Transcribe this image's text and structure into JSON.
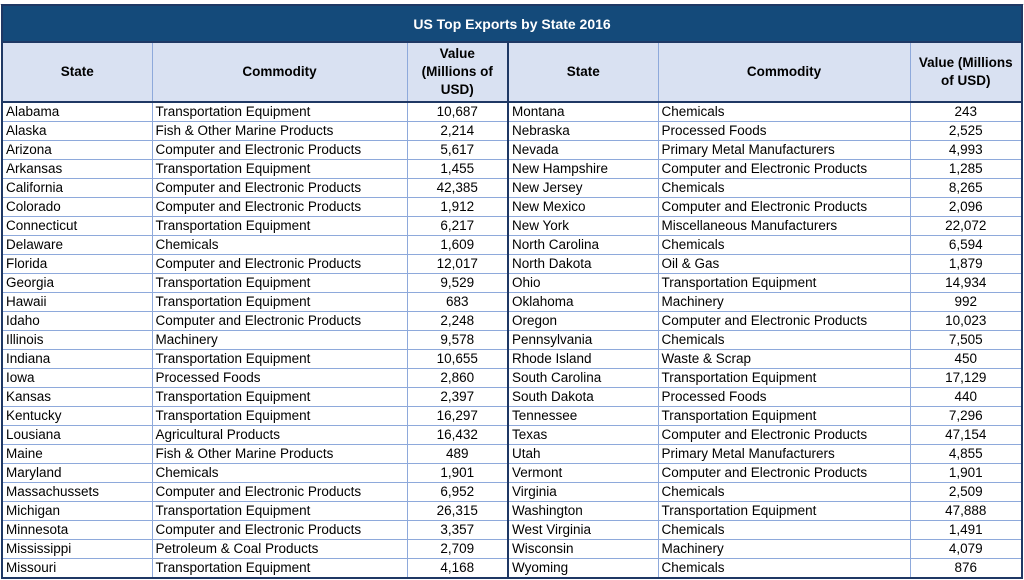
{
  "title": "US Top Exports by State 2016",
  "colors": {
    "title_bg": "#144a7a",
    "header_bg": "#d9e1f2",
    "border": "#1f3864",
    "grid": "#8ea9db"
  },
  "headers": {
    "left": {
      "state": "State",
      "commodity": "Commodity",
      "value": "Value (Millions of USD)"
    },
    "right": {
      "state": "State",
      "commodity": "Commodity",
      "value": "Value (Millions of USD)"
    }
  },
  "rows": [
    {
      "l": [
        "Alabama",
        "Transportation Equipment",
        "10,687"
      ],
      "r": [
        "Montana",
        "Chemicals",
        "243"
      ]
    },
    {
      "l": [
        "Alaska",
        "Fish & Other Marine Products",
        "2,214"
      ],
      "r": [
        "Nebraska",
        "Processed Foods",
        "2,525"
      ]
    },
    {
      "l": [
        "Arizona",
        "Computer and Electronic Products",
        "5,617"
      ],
      "r": [
        "Nevada",
        "Primary Metal Manufacturers",
        "4,993"
      ]
    },
    {
      "l": [
        "Arkansas",
        "Transportation Equipment",
        "1,455"
      ],
      "r": [
        "New Hampshire",
        "Computer and Electronic Products",
        "1,285"
      ]
    },
    {
      "l": [
        "California",
        "Computer and Electronic Products",
        "42,385"
      ],
      "r": [
        "New Jersey",
        "Chemicals",
        "8,265"
      ]
    },
    {
      "l": [
        "Colorado",
        "Computer and Electronic Products",
        "1,912"
      ],
      "r": [
        "New Mexico",
        "Computer and Electronic Products",
        "2,096"
      ]
    },
    {
      "l": [
        "Connecticut",
        "Transportation Equipment",
        "6,217"
      ],
      "r": [
        "New York",
        "Miscellaneous Manufacturers",
        "22,072"
      ]
    },
    {
      "l": [
        "Delaware",
        "Chemicals",
        "1,609"
      ],
      "r": [
        "North Carolina",
        "Chemicals",
        "6,594"
      ]
    },
    {
      "l": [
        "Florida",
        "Computer and Electronic Products",
        "12,017"
      ],
      "r": [
        "North Dakota",
        "Oil & Gas",
        "1,879"
      ]
    },
    {
      "l": [
        "Georgia",
        "Transportation Equipment",
        "9,529"
      ],
      "r": [
        "Ohio",
        "Transportation Equipment",
        "14,934"
      ]
    },
    {
      "l": [
        "Hawaii",
        "Transportation Equipment",
        "683"
      ],
      "r": [
        "Oklahoma",
        "Machinery",
        "992"
      ]
    },
    {
      "l": [
        "Idaho",
        "Computer and Electronic Products",
        "2,248"
      ],
      "r": [
        "Oregon",
        "Computer and Electronic Products",
        "10,023"
      ]
    },
    {
      "l": [
        "Illinois",
        "Machinery",
        "9,578"
      ],
      "r": [
        "Pennsylvania",
        "Chemicals",
        "7,505"
      ]
    },
    {
      "l": [
        "Indiana",
        "Transportation Equipment",
        "10,655"
      ],
      "r": [
        "Rhode Island",
        "Waste & Scrap",
        "450"
      ]
    },
    {
      "l": [
        "Iowa",
        "Processed Foods",
        "2,860"
      ],
      "r": [
        "South Carolina",
        "Transportation Equipment",
        "17,129"
      ]
    },
    {
      "l": [
        "Kansas",
        "Transportation Equipment",
        "2,397"
      ],
      "r": [
        "South Dakota",
        "Processed Foods",
        "440"
      ]
    },
    {
      "l": [
        "Kentucky",
        "Transportation Equipment",
        "16,297"
      ],
      "r": [
        "Tennessee",
        "Transportation Equipment",
        "7,296"
      ]
    },
    {
      "l": [
        "Lousiana",
        "Agricultural Products",
        "16,432"
      ],
      "r": [
        "Texas",
        "Computer and Electronic Products",
        "47,154"
      ]
    },
    {
      "l": [
        "Maine",
        "Fish & Other Marine Products",
        "489"
      ],
      "r": [
        "Utah",
        "Primary Metal Manufacturers",
        "4,855"
      ]
    },
    {
      "l": [
        "Maryland",
        "Chemicals",
        "1,901"
      ],
      "r": [
        "Vermont",
        "Computer and Electronic Products",
        "1,901"
      ]
    },
    {
      "l": [
        "Massachussets",
        "Computer and Electronic Products",
        "6,952"
      ],
      "r": [
        "Virginia",
        "Chemicals",
        "2,509"
      ]
    },
    {
      "l": [
        "Michigan",
        "Transportation Equipment",
        "26,315"
      ],
      "r": [
        "Washington",
        "Transportation Equipment",
        "47,888"
      ]
    },
    {
      "l": [
        "Minnesota",
        "Computer and Electronic Products",
        "3,357"
      ],
      "r": [
        "West Virginia",
        "Chemicals",
        "1,491"
      ]
    },
    {
      "l": [
        "Mississippi",
        "Petroleum & Coal Products",
        "2,709"
      ],
      "r": [
        "Wisconsin",
        "Machinery",
        "4,079"
      ]
    },
    {
      "l": [
        "Missouri",
        "Transportation Equipment",
        "4,168"
      ],
      "r": [
        "Wyoming",
        "Chemicals",
        "876"
      ]
    }
  ]
}
